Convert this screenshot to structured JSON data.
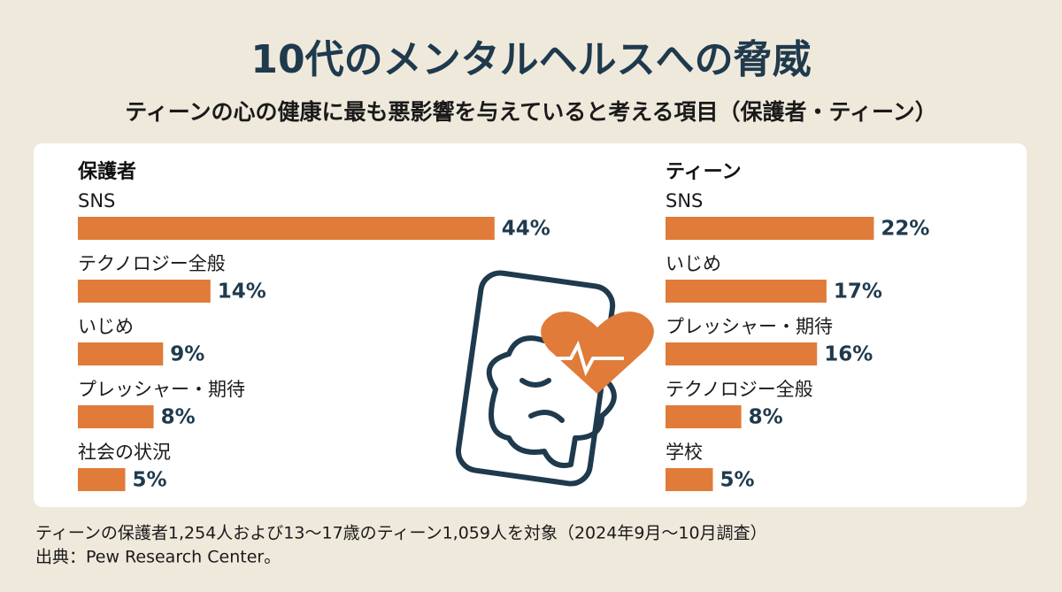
{
  "title": "10代のメンタルヘルスへの脅威",
  "subtitle": "ティーンの心の健康に最も悪影響を与えていると考える項目（保護者・ティーン）",
  "footnotes": [
    "ティーンの保護者1,254人および13〜17歳のティーン1,059人を対象（2024年9月〜10月調査）",
    "出典：Pew Research Center。"
  ],
  "chart_data": [
    {
      "type": "bar",
      "title": "保護者",
      "color": "#e07b39",
      "categories": [
        "SNS",
        "テクノロジー全般",
        "いじめ",
        "プレッシャー・期待",
        "社会の状況"
      ],
      "values": [
        44,
        14,
        9,
        8,
        5
      ],
      "value_labels": [
        "44%",
        "14%",
        "9%",
        "8%",
        "5%"
      ]
    },
    {
      "type": "bar",
      "title": "ティーン",
      "color": "#e07b39",
      "categories": [
        "SNS",
        "いじめ",
        "プレッシャー・期待",
        "テクノロジー全般",
        "学校"
      ],
      "values": [
        22,
        17,
        16,
        8,
        5
      ],
      "value_labels": [
        "22%",
        "17%",
        "16%",
        "8%",
        "5%"
      ]
    }
  ]
}
